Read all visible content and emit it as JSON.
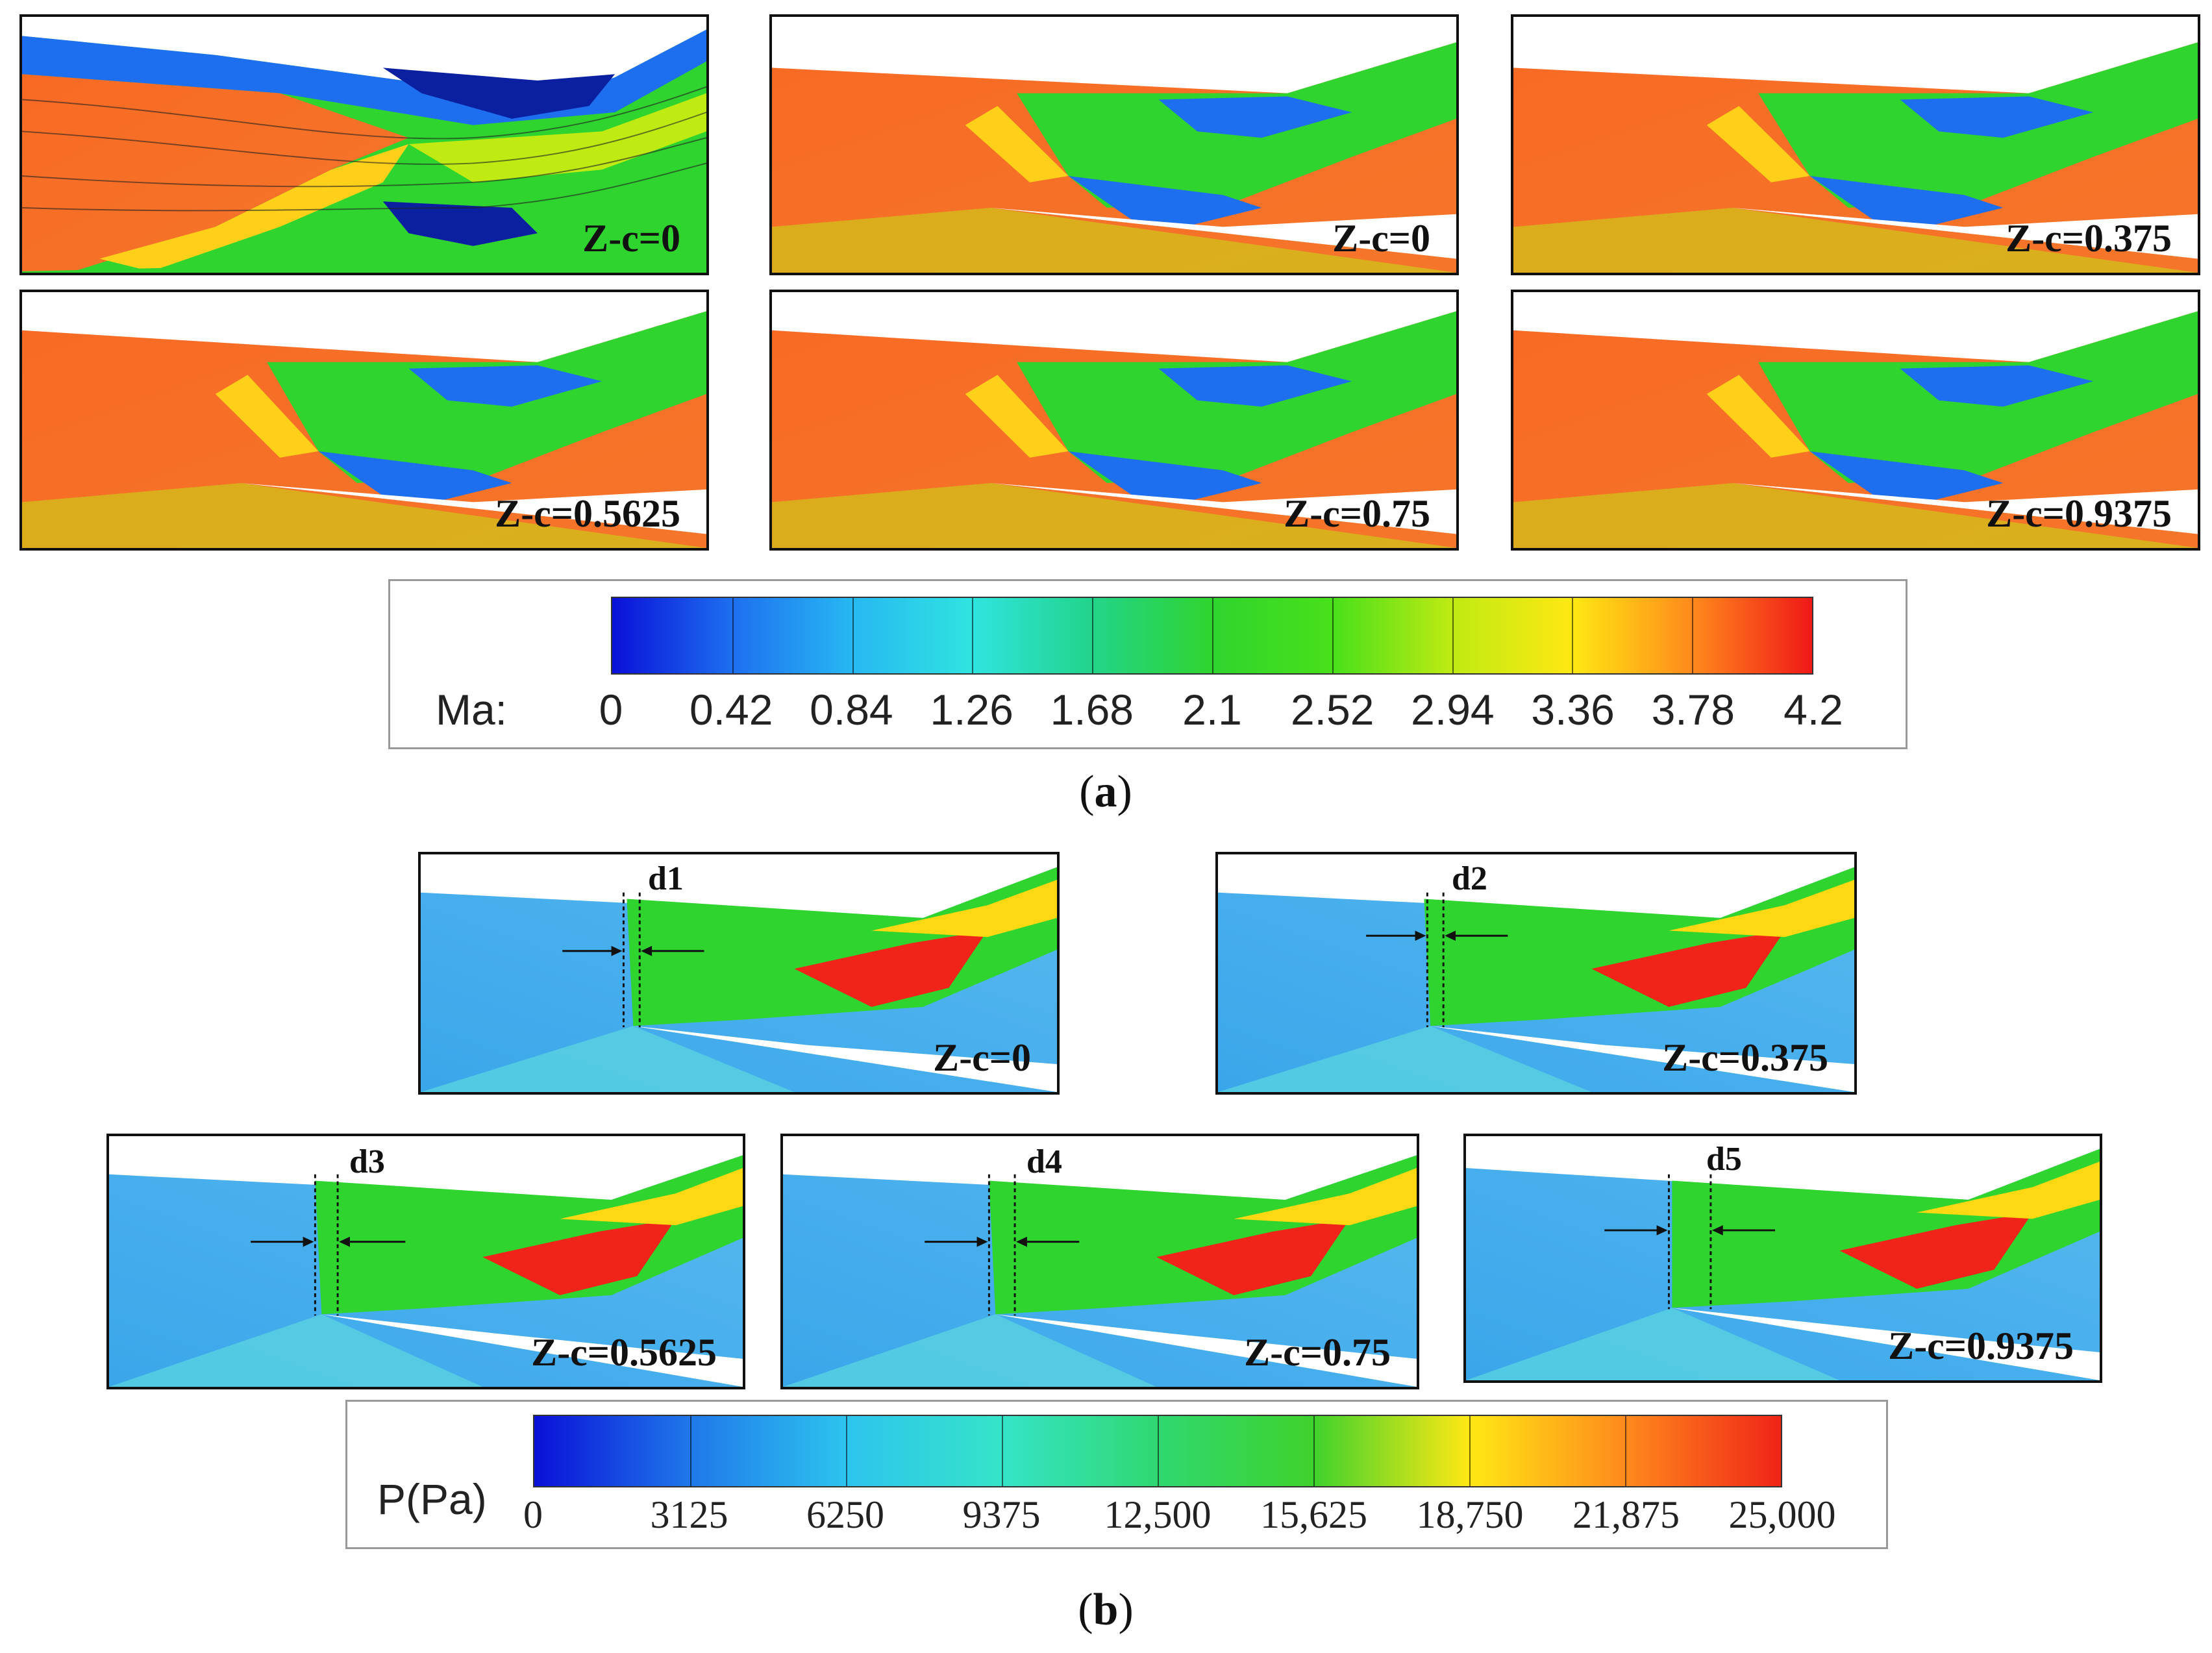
{
  "colors": {
    "ma_scale": [
      "#0a10d8",
      "#1e6ff0",
      "#27b8f2",
      "#2fe4e0",
      "#22d48a",
      "#2fd42e",
      "#48e01a",
      "#bfea12",
      "#ffe812",
      "#ffa21c",
      "#ff5a22",
      "#f01818"
    ],
    "p_scale": [
      "#0a10d8",
      "#1f78ea",
      "#2dc4ee",
      "#35e4c8",
      "#2fd870",
      "#3fd22c",
      "#b4e81c",
      "#ffd814",
      "#ff8a1c",
      "#f02418"
    ]
  },
  "section_a": {
    "caption_open": "(",
    "caption_letter": "a",
    "caption_close": ")",
    "panels": [
      {
        "label": "Z-c=0"
      },
      {
        "label": "Z-c=0"
      },
      {
        "label": "Z-c=0.375"
      },
      {
        "label": "Z-c=0.5625"
      },
      {
        "label": "Z-c=0.75"
      },
      {
        "label": "Z-c=0.9375"
      }
    ],
    "colorbar": {
      "title": "Ma:",
      "min": 0,
      "max": 4.2,
      "ticks": [
        "0",
        "0.42",
        "0.84",
        "1.26",
        "1.68",
        "2.1",
        "2.52",
        "2.94",
        "3.36",
        "3.78",
        "4.2"
      ]
    }
  },
  "section_b": {
    "caption_open": "(",
    "caption_letter": "b",
    "caption_close": ")",
    "panels": [
      {
        "label": "Z-c=0",
        "distance": "d1"
      },
      {
        "label": "Z-c=0.375",
        "distance": "d2"
      },
      {
        "label": "Z-c=0.5625",
        "distance": "d3"
      },
      {
        "label": "Z-c=0.75",
        "distance": "d4"
      },
      {
        "label": "Z-c=0.9375",
        "distance": "d5"
      }
    ],
    "colorbar": {
      "title": "P(Pa)",
      "min": 0,
      "max": 25000,
      "ticks": [
        "0",
        "3125",
        "6250",
        "9375",
        "12,500",
        "15,625",
        "18,750",
        "21,875",
        "25,000"
      ]
    }
  }
}
